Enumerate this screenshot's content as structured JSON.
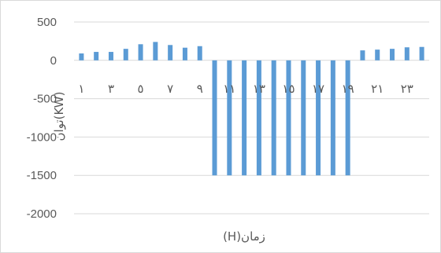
{
  "chart_data": {
    "type": "bar",
    "title": "",
    "xlabel": "(H)زمان",
    "ylabel": "توان(KW)",
    "ylim": [
      -2000,
      500
    ],
    "yticks": [
      500,
      0,
      -500,
      -1000,
      -1500,
      -2000
    ],
    "ytick_labels": [
      "500",
      "0",
      "-500",
      "-1000",
      "-1500",
      "-2000"
    ],
    "grid": true,
    "legend": "none",
    "bar_color": "#5b9bd5",
    "categories": [
      "1",
      "2",
      "3",
      "4",
      "5",
      "6",
      "7",
      "8",
      "9",
      "10",
      "11",
      "12",
      "13",
      "14",
      "15",
      "16",
      "17",
      "18",
      "19",
      "20",
      "21",
      "22",
      "23",
      "24"
    ],
    "xtick_labels": [
      "١",
      "",
      "٣",
      "",
      "٥",
      "",
      "٧",
      "",
      "٩",
      "",
      "١١",
      "",
      "١٣",
      "",
      "١٥",
      "",
      "١٧",
      "",
      "١٩",
      "",
      "٢١",
      "",
      "٢٣",
      ""
    ],
    "values": [
      90,
      110,
      110,
      150,
      210,
      240,
      200,
      165,
      185,
      -1500,
      -1500,
      -1500,
      -1500,
      -1500,
      -1500,
      -1500,
      -1500,
      -1500,
      -1500,
      130,
      140,
      150,
      170,
      175
    ]
  }
}
